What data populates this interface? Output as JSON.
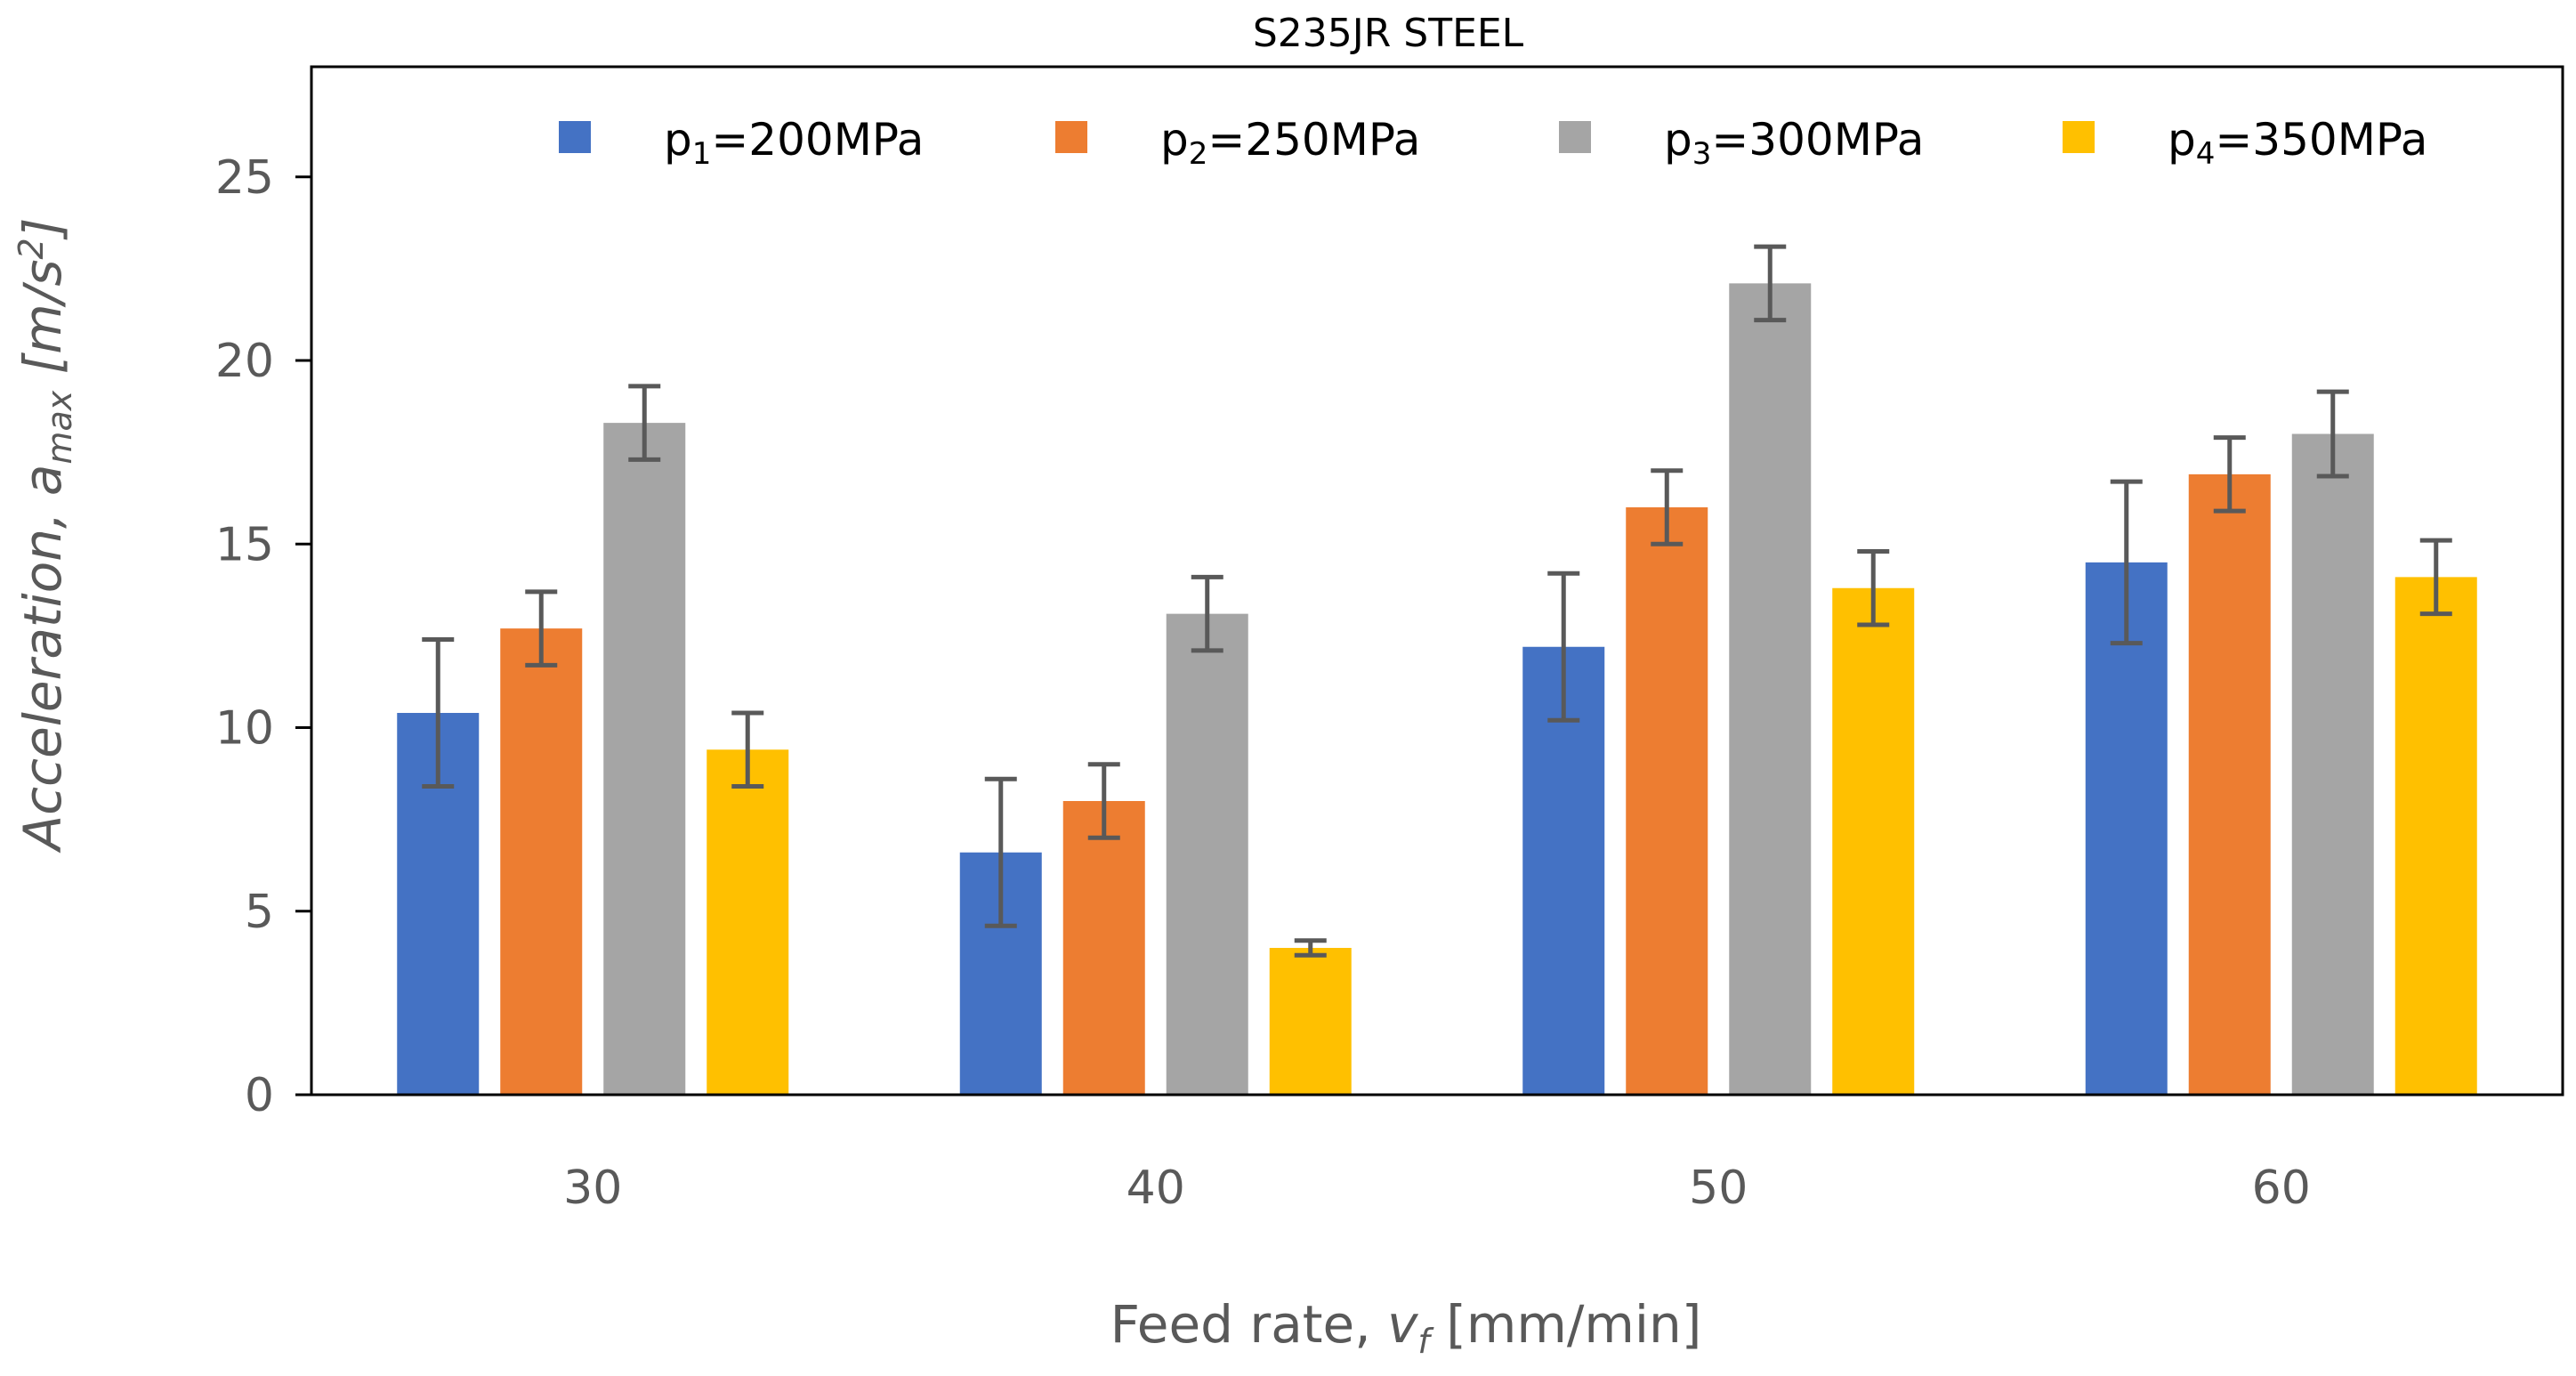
{
  "chart_data": {
    "type": "bar",
    "title": "S235JR STEEL",
    "xlabel": "Feed rate, ",
    "xlabel_var": "v",
    "xlabel_sub": "f",
    "xlabel_unit": " [mm/min]",
    "ylabel": "Acceleration, ",
    "ylabel_var": "a",
    "ylabel_sub": "max",
    "ylabel_unit": " [m/s",
    "ylabel_sup": "2",
    "ylabel_close": "]",
    "ylim": [
      0,
      28
    ],
    "yticks": [
      "0",
      "5",
      "10",
      "15",
      "20",
      "25"
    ],
    "categories": [
      "30",
      "40",
      "50",
      "60"
    ],
    "series": [
      {
        "name": "p1=200MPa",
        "label_base": "p",
        "label_sub": "1",
        "label_rest": "=200MPa",
        "color": "#4472C4",
        "values": [
          10.4,
          6.6,
          12.2,
          14.5
        ],
        "errors": [
          2.0,
          2.0,
          2.0,
          2.2
        ]
      },
      {
        "name": "p2=250MPa",
        "label_base": "p",
        "label_sub": "2",
        "label_rest": "=250MPa",
        "color": "#ED7D31",
        "values": [
          12.7,
          8.0,
          16.0,
          16.9
        ],
        "errors": [
          1.0,
          1.0,
          1.0,
          1.0
        ]
      },
      {
        "name": "p3=300MPa",
        "label_base": "p",
        "label_sub": "3",
        "label_rest": "=300MPa",
        "color": "#A5A5A5",
        "values": [
          18.3,
          13.1,
          22.1,
          18.0
        ],
        "errors": [
          1.0,
          1.0,
          1.0,
          1.15
        ]
      },
      {
        "name": "p4=350MPa",
        "label_base": "p",
        "label_sub": "4",
        "label_rest": "=350MPa",
        "color": "#FFC000",
        "values": [
          9.4,
          4.0,
          13.8,
          14.1
        ],
        "errors": [
          1.0,
          0.2,
          1.0,
          1.0
        ]
      }
    ],
    "error_bar_color": "#595959",
    "legend_position": "top-inside",
    "grid": false
  }
}
